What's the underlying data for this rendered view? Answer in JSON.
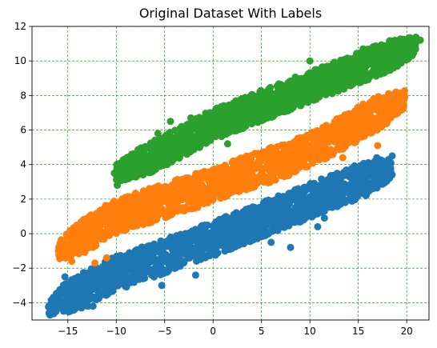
{
  "chart_data": {
    "type": "scatter",
    "title": "Original Dataset With Labels",
    "xlabel": "",
    "ylabel": "",
    "xlim": [
      -18.7,
      22.3
    ],
    "ylim": [
      -5.0,
      12.0
    ],
    "x_ticks": [
      -15,
      -10,
      -5,
      0,
      5,
      10,
      15,
      20
    ],
    "y_ticks": [
      -4,
      -2,
      0,
      2,
      4,
      6,
      8,
      10,
      12
    ],
    "grid": true,
    "grid_color": "#008000",
    "series": [
      {
        "color": "#1f77b4",
        "band_center": [
          [
            -17,
            -4.2
          ],
          [
            -10,
            -2.3
          ],
          [
            0,
            -0.3
          ],
          [
            10,
            1.9
          ],
          [
            18.5,
            3.8
          ]
        ],
        "band_halfwidth": 1.0,
        "points": [
          [
            -16.8,
            -4.3
          ],
          [
            -16.6,
            -4.1
          ],
          [
            -16.3,
            -3.7
          ],
          [
            -15.3,
            -2.5
          ],
          [
            -14.3,
            -2.6
          ],
          [
            -13.6,
            -4.3
          ],
          [
            -12.9,
            -4.2
          ],
          [
            -12.4,
            -4.2
          ],
          [
            -5.3,
            -3.0
          ],
          [
            -1.8,
            -2.4
          ],
          [
            15.4,
            2.5
          ],
          [
            14.3,
            2.8
          ],
          [
            16.8,
            3.4
          ],
          [
            16.9,
            4.4
          ],
          [
            18.5,
            4.5
          ],
          [
            8.0,
            -0.8
          ],
          [
            6.0,
            -0.5
          ],
          [
            10.8,
            0.4
          ],
          [
            12.5,
            2.0
          ],
          [
            11.5,
            0.9
          ]
        ]
      },
      {
        "color": "#ff7f0e",
        "band_center": [
          [
            -16,
            -1.0
          ],
          [
            -10,
            1.0
          ],
          [
            0,
            2.8
          ],
          [
            10,
            4.8
          ],
          [
            19.8,
            7.8
          ]
        ],
        "band_halfwidth": 1.0,
        "points": [
          [
            -15.0,
            -0.8
          ],
          [
            -15.6,
            -1.0
          ],
          [
            -13.1,
            -0.6
          ],
          [
            -12.7,
            0.8
          ],
          [
            -11.5,
            1.1
          ],
          [
            -10.5,
            0.8
          ],
          [
            -11.0,
            -1.4
          ],
          [
            -12.2,
            -1.7
          ],
          [
            -14.6,
            -1.6
          ],
          [
            -6.5,
            2.1
          ],
          [
            -5.5,
            2.5
          ],
          [
            -9.5,
            1.9
          ],
          [
            -6.2,
            2.6
          ],
          [
            14.5,
            6.6
          ],
          [
            16.0,
            6.8
          ],
          [
            17.0,
            5.1
          ],
          [
            18.2,
            7.8
          ],
          [
            19.8,
            7.9
          ],
          [
            15.5,
            7.5
          ],
          [
            13.4,
            4.4
          ]
        ]
      },
      {
        "color": "#2ca02c",
        "band_center": [
          [
            -10,
            3.5
          ],
          [
            -5,
            4.8
          ],
          [
            0,
            6.3
          ],
          [
            10,
            8.5
          ],
          [
            21,
            10.9
          ]
        ],
        "band_halfwidth": 0.9,
        "points": [
          [
            -10.2,
            3.5
          ],
          [
            -9.9,
            2.8
          ],
          [
            -9.6,
            3.8
          ],
          [
            -8.0,
            3.9
          ],
          [
            -6.5,
            4.9
          ],
          [
            -5.7,
            5.8
          ],
          [
            -7.1,
            4.5
          ],
          [
            -4.4,
            6.5
          ],
          [
            -2.3,
            6.7
          ],
          [
            20.8,
            11.3
          ],
          [
            21.4,
            11.2
          ],
          [
            20.9,
            10.7
          ],
          [
            19.8,
            10.8
          ],
          [
            18.5,
            10.1
          ],
          [
            17.0,
            9.3
          ],
          [
            15.5,
            10.7
          ],
          [
            12.5,
            9.2
          ],
          [
            10.0,
            10.0
          ],
          [
            5.0,
            7.7
          ],
          [
            1.5,
            5.2
          ]
        ]
      }
    ]
  }
}
